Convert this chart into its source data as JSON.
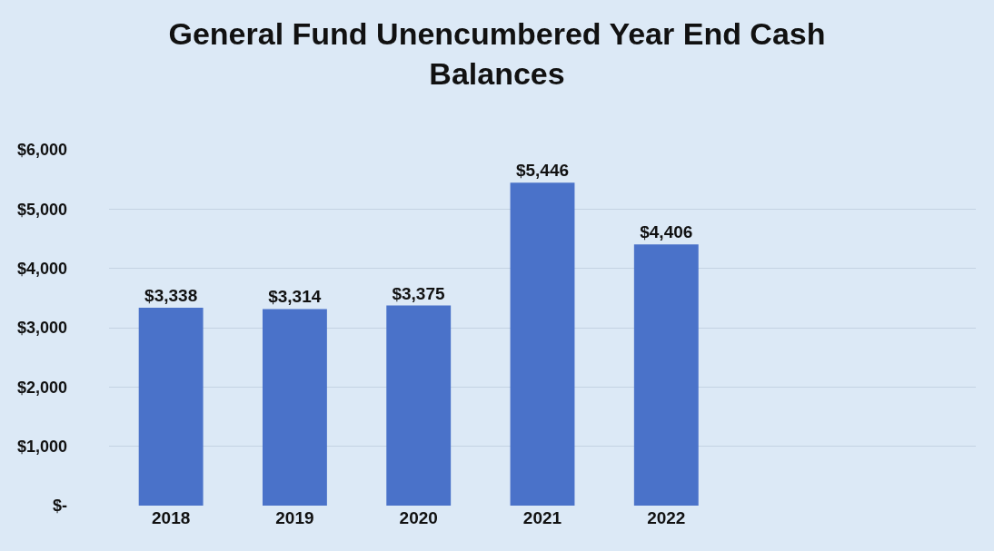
{
  "chart_data": {
    "type": "bar",
    "title": "General Fund Unencumbered Year End Cash Balances",
    "categories": [
      "2018",
      "2019",
      "2020",
      "2021",
      "2022",
      null,
      null
    ],
    "values": [
      3338,
      3314,
      3375,
      5446,
      4406,
      null,
      null
    ],
    "value_labels": [
      "$3,338",
      "$3,314",
      "$3,375",
      "$5,446",
      "$4,406",
      null,
      null
    ],
    "color": "#4a72c9",
    "ylim": [
      0,
      6000
    ],
    "yticks": [
      {
        "value": 0,
        "label": "$-"
      },
      {
        "value": 1000,
        "label": "$1,000"
      },
      {
        "value": 2000,
        "label": "$2,000"
      },
      {
        "value": 3000,
        "label": "$3,000"
      },
      {
        "value": 4000,
        "label": "$4,000"
      },
      {
        "value": 5000,
        "label": "$5,000"
      },
      {
        "value": 6000,
        "label": "$6,000"
      }
    ],
    "grid": "y"
  }
}
